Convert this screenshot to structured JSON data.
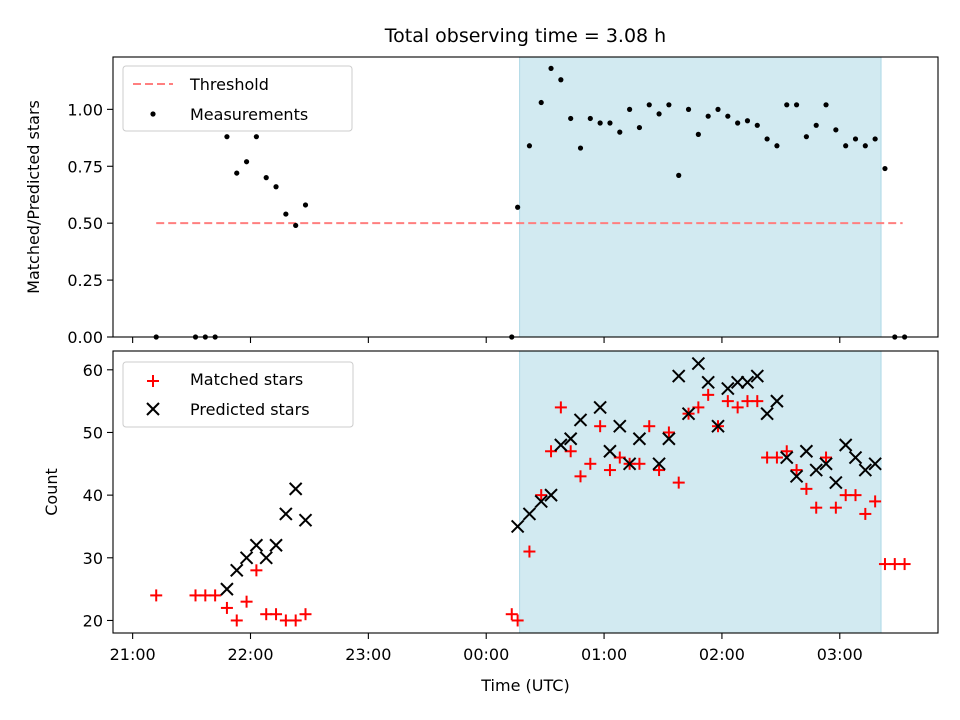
{
  "title": "Total observing time = 3.08 h",
  "colors": {
    "threshold": "#ff7f7f",
    "measurements": "#000000",
    "matched": "#ff0000",
    "predicted": "#000000",
    "shade": "#add8e6"
  },
  "chart_data": [
    {
      "type": "scatter",
      "ylabel": "Matched/Predicted stars",
      "ylim": [
        0,
        1.23
      ],
      "yticks": [
        "0.00",
        "0.25",
        "0.50",
        "0.75",
        "1.00"
      ],
      "ytick_values": [
        0,
        0.25,
        0.5,
        0.75,
        1.0
      ],
      "xlim": [
        "21:00",
        "03:50"
      ],
      "shaded_span": [
        "00:17",
        "03:21"
      ],
      "legend": {
        "placement": "top-left",
        "entries": [
          "Threshold",
          "Measurements"
        ]
      },
      "series": [
        {
          "name": "Threshold",
          "kind": "dashed-line",
          "x": [
            "21:12",
            "03:32"
          ],
          "y": [
            0.5,
            0.5
          ]
        },
        {
          "name": "Measurements",
          "kind": "points",
          "x": [
            "21:12",
            "21:32",
            "21:37",
            "21:42",
            "21:48",
            "21:53",
            "21:58",
            "22:03",
            "22:08",
            "22:13",
            "22:18",
            "22:23",
            "22:28",
            "22:33",
            "00:13",
            "00:16",
            "00:22",
            "00:28",
            "00:33",
            "00:38",
            "00:43",
            "00:48",
            "00:53",
            "00:58",
            "01:03",
            "01:08",
            "01:13",
            "01:18",
            "01:23",
            "01:28",
            "01:33",
            "01:38",
            "01:43",
            "01:48",
            "01:53",
            "01:58",
            "02:03",
            "02:08",
            "02:13",
            "02:18",
            "02:23",
            "02:28",
            "02:33",
            "02:38",
            "02:43",
            "02:48",
            "02:53",
            "02:58",
            "03:03",
            "03:08",
            "03:13",
            "03:18",
            "03:23",
            "03:28",
            "03:33"
          ],
          "y": [
            0.0,
            0.0,
            0.0,
            0.0,
            0.88,
            0.72,
            0.77,
            0.88,
            0.7,
            0.66,
            0.54,
            0.49,
            0.58,
            null,
            0.0,
            0.57,
            0.84,
            1.03,
            1.18,
            1.13,
            0.96,
            0.83,
            0.96,
            0.94,
            0.94,
            0.9,
            1.0,
            0.92,
            1.02,
            0.98,
            1.02,
            0.71,
            1.0,
            0.89,
            0.97,
            1.0,
            0.97,
            0.94,
            0.95,
            0.93,
            0.87,
            0.84,
            1.02,
            1.02,
            0.88,
            0.93,
            1.02,
            0.91,
            0.84,
            0.87,
            0.84,
            0.87,
            0.74,
            0.0,
            0.0
          ]
        }
      ]
    },
    {
      "type": "scatter",
      "ylabel": "Count",
      "xlabel": "Time (UTC)",
      "ylim": [
        18,
        63
      ],
      "yticks": [
        "20",
        "30",
        "40",
        "50",
        "60"
      ],
      "ytick_values": [
        20,
        30,
        40,
        50,
        60
      ],
      "xticks": [
        "21:00",
        "22:00",
        "23:00",
        "00:00",
        "01:00",
        "02:00",
        "03:00"
      ],
      "xtick_values": [
        "21:00",
        "22:00",
        "23:00",
        "00:00",
        "01:00",
        "02:00",
        "03:00"
      ],
      "xlim": [
        "21:00",
        "03:50"
      ],
      "shaded_span": [
        "00:17",
        "03:21"
      ],
      "legend": {
        "placement": "top-left",
        "entries": [
          "Matched stars",
          "Predicted stars"
        ]
      },
      "series": [
        {
          "name": "Matched stars",
          "marker": "plus",
          "x": [
            "21:12",
            "21:32",
            "21:37",
            "21:42",
            "21:48",
            "21:53",
            "21:58",
            "22:03",
            "22:08",
            "22:13",
            "22:18",
            "22:23",
            "22:28",
            "00:13",
            "00:16",
            "00:22",
            "00:28",
            "00:33",
            "00:38",
            "00:43",
            "00:48",
            "00:53",
            "00:58",
            "01:03",
            "01:08",
            "01:13",
            "01:18",
            "01:23",
            "01:28",
            "01:33",
            "01:38",
            "01:43",
            "01:48",
            "01:53",
            "01:58",
            "02:03",
            "02:08",
            "02:13",
            "02:18",
            "02:23",
            "02:28",
            "02:33",
            "02:38",
            "02:43",
            "02:48",
            "02:53",
            "02:58",
            "03:03",
            "03:08",
            "03:13",
            "03:18",
            "03:23",
            "03:28",
            "03:33"
          ],
          "y": [
            24,
            24,
            24,
            24,
            22,
            20,
            23,
            28,
            21,
            21,
            20,
            20,
            21,
            21,
            20,
            31,
            40,
            47,
            54,
            47,
            43,
            45,
            51,
            44,
            46,
            45,
            45,
            51,
            44,
            50,
            42,
            53,
            54,
            56,
            51,
            55,
            54,
            55,
            55,
            46,
            46,
            47,
            44,
            41,
            38,
            46,
            38,
            40,
            40,
            37,
            39,
            29,
            29,
            29
          ]
        },
        {
          "name": "Predicted stars",
          "marker": "cross",
          "x": [
            "21:48",
            "21:53",
            "21:58",
            "22:03",
            "22:08",
            "22:13",
            "22:18",
            "22:23",
            "22:28",
            "00:16",
            "00:22",
            "00:28",
            "00:33",
            "00:38",
            "00:43",
            "00:48",
            "00:58",
            "01:03",
            "01:08",
            "01:13",
            "01:18",
            "01:28",
            "01:33",
            "01:38",
            "01:43",
            "01:48",
            "01:53",
            "01:58",
            "02:03",
            "02:08",
            "02:13",
            "02:18",
            "02:23",
            "02:28",
            "02:33",
            "02:38",
            "02:43",
            "02:48",
            "02:53",
            "02:58",
            "03:03",
            "03:08",
            "03:13",
            "03:18"
          ],
          "y": [
            25,
            28,
            30,
            32,
            30,
            32,
            37,
            41,
            36,
            35,
            37,
            39,
            40,
            48,
            49,
            52,
            54,
            47,
            51,
            45,
            49,
            45,
            49,
            59,
            53,
            61,
            58,
            51,
            57,
            58,
            58,
            59,
            53,
            55,
            46,
            43,
            47,
            44,
            45,
            42,
            48,
            46,
            44,
            45
          ]
        }
      ]
    }
  ]
}
